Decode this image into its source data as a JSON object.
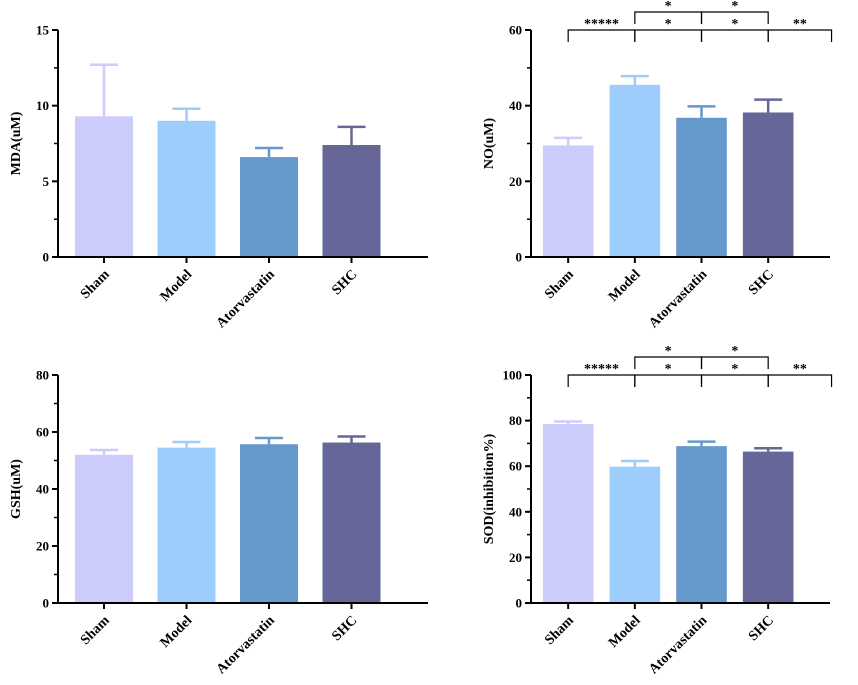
{
  "palette": {
    "Sham": "#cccdfd",
    "Model": "#9ccdfd",
    "Atorvastatin": "#6599cc",
    "SHC": "#666699",
    "axis": "#000000"
  },
  "chart_data": [
    {
      "type": "bar",
      "ylabel": "MDA(uM)",
      "ylim": [
        0,
        15
      ],
      "yticks": [
        0,
        5,
        10,
        15
      ],
      "categories": [
        "Sham",
        "Model",
        "Atorvastatin",
        "SHC"
      ],
      "values": [
        9.3,
        9.0,
        6.6,
        7.4
      ],
      "errors": [
        3.4,
        0.8,
        0.6,
        1.2
      ],
      "brackets": []
    },
    {
      "type": "bar",
      "ylabel": "NO(uM)",
      "ylim": [
        0,
        60
      ],
      "yticks": [
        0,
        20,
        40,
        60
      ],
      "categories": [
        "Sham",
        "Model",
        "Atorvastatin",
        "SHC"
      ],
      "values": [
        29.5,
        45.5,
        36.8,
        38.2
      ],
      "errors": [
        2.0,
        2.3,
        3.0,
        3.4
      ],
      "brackets": [
        {
          "from": 0,
          "to": 1,
          "level": 0,
          "label": "*****"
        },
        {
          "from": 1,
          "to": 2,
          "level": 0,
          "label": "*"
        },
        {
          "from": 2,
          "to": 3,
          "level": 0,
          "label": "*"
        },
        {
          "from": 3,
          "to": 3.98,
          "level": 0,
          "label": "**"
        },
        {
          "from": 1,
          "to": 2,
          "level": 1,
          "label": "*"
        },
        {
          "from": 2,
          "to": 3,
          "level": 1,
          "label": "*"
        }
      ]
    },
    {
      "type": "bar",
      "ylabel": "GSH(uM)",
      "ylim": [
        0,
        80
      ],
      "yticks": [
        0,
        20,
        40,
        60,
        80
      ],
      "categories": [
        "Sham",
        "Model",
        "Atorvastatin",
        "SHC"
      ],
      "values": [
        52.0,
        54.5,
        55.7,
        56.3
      ],
      "errors": [
        1.7,
        2.0,
        2.2,
        2.1
      ],
      "brackets": []
    },
    {
      "type": "bar",
      "ylabel": "SOD(inhibition%)",
      "ylim": [
        0,
        100
      ],
      "yticks": [
        0,
        20,
        40,
        60,
        80,
        100
      ],
      "categories": [
        "Sham",
        "Model",
        "Atorvastatin",
        "SHC"
      ],
      "values": [
        78.5,
        59.8,
        68.8,
        66.4
      ],
      "errors": [
        1.1,
        2.5,
        2.0,
        1.5
      ],
      "brackets": [
        {
          "from": 0,
          "to": 1,
          "level": 0,
          "label": "*****"
        },
        {
          "from": 1,
          "to": 2,
          "level": 0,
          "label": "*"
        },
        {
          "from": 2,
          "to": 3,
          "level": 0,
          "label": "*"
        },
        {
          "from": 3,
          "to": 3.98,
          "level": 0,
          "label": "**"
        },
        {
          "from": 1,
          "to": 2,
          "level": 1,
          "label": "*"
        },
        {
          "from": 2,
          "to": 3,
          "level": 1,
          "label": "*"
        }
      ]
    }
  ]
}
